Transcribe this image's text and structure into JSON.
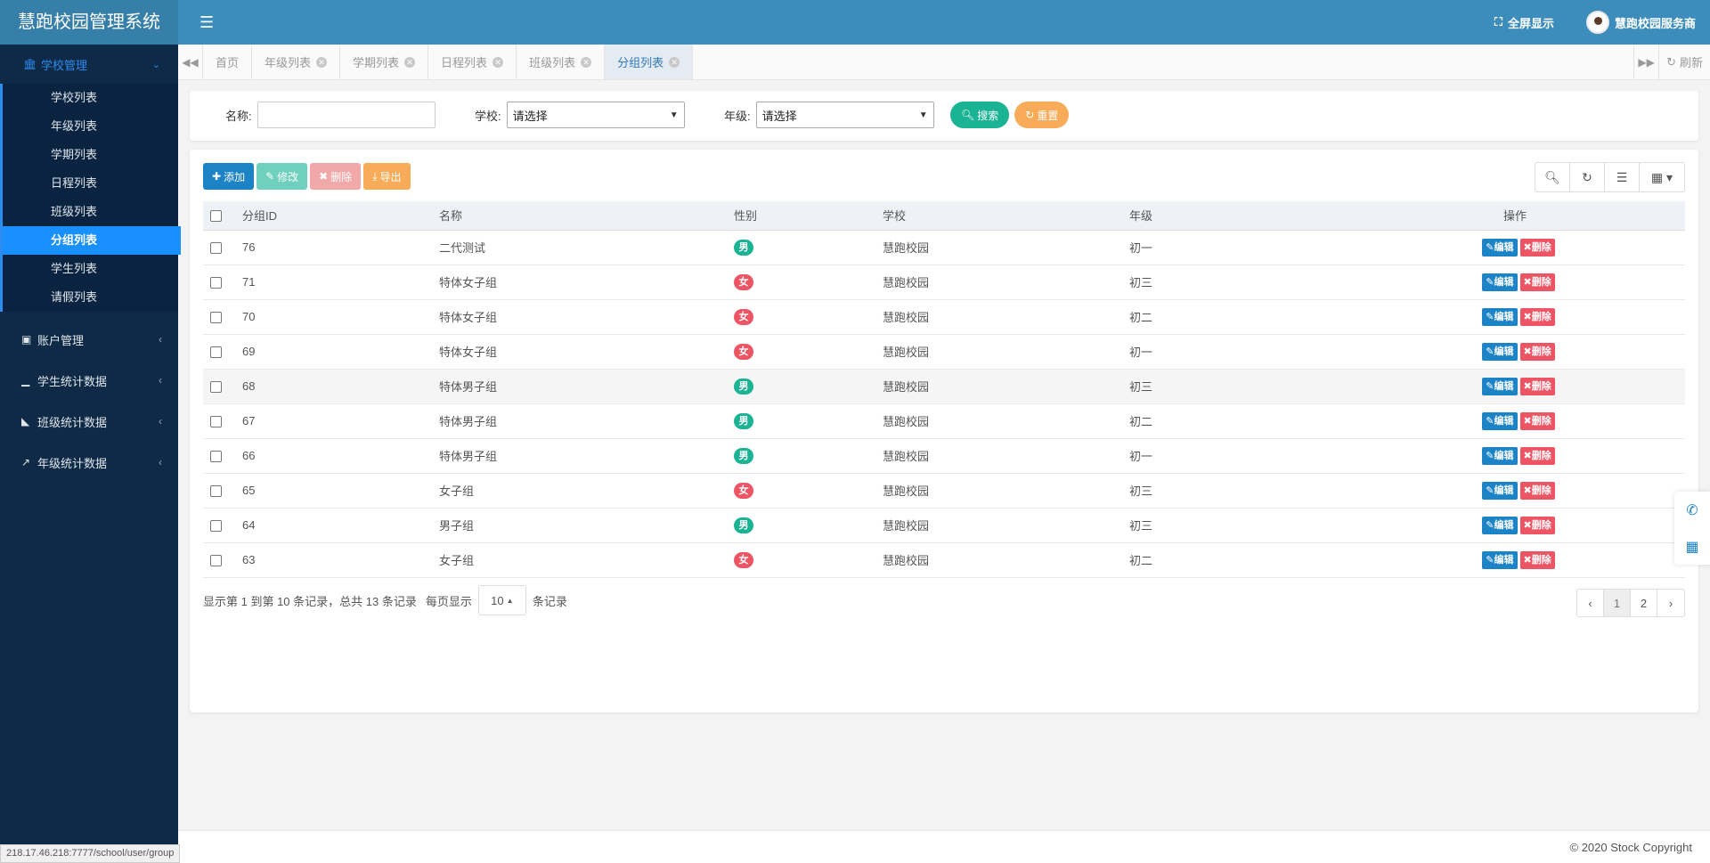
{
  "app": {
    "title": "慧跑校园管理系统",
    "fullscreen_label": "全屏显示",
    "user_name": "慧跑校园服务商",
    "footer": "© 2020 Stock Copyright",
    "status_url": "218.17.46.218:7777/school/user/group"
  },
  "sidebar": {
    "active_group": "学校管理",
    "items": [
      {
        "label": "学校列表"
      },
      {
        "label": "年级列表"
      },
      {
        "label": "学期列表"
      },
      {
        "label": "日程列表"
      },
      {
        "label": "班级列表"
      },
      {
        "label": "分组列表"
      },
      {
        "label": "学生列表"
      },
      {
        "label": "请假列表"
      }
    ],
    "groups": [
      {
        "label": "账户管理"
      },
      {
        "label": "学生统计数据"
      },
      {
        "label": "班级统计数据"
      },
      {
        "label": "年级统计数据"
      }
    ]
  },
  "tabs": [
    {
      "label": "首页"
    },
    {
      "label": "年级列表"
    },
    {
      "label": "学期列表"
    },
    {
      "label": "日程列表"
    },
    {
      "label": "班级列表"
    },
    {
      "label": "分组列表"
    }
  ],
  "refresh_label": "刷新",
  "search": {
    "name_label": "名称:",
    "school_label": "学校:",
    "school_value": "请选择",
    "grade_label": "年级:",
    "grade_value": "请选择",
    "search_btn": "搜索",
    "reset_btn": "重置"
  },
  "toolbar": {
    "add": "添加",
    "edit": "修改",
    "delete": "删除",
    "export": "导出"
  },
  "table": {
    "headers": [
      "分组ID",
      "名称",
      "性别",
      "学校",
      "年级",
      "操作"
    ],
    "edit_label": "编辑",
    "delete_label": "删除",
    "rows": [
      {
        "id": "76",
        "name": "二代测试",
        "gender": "男",
        "school": "慧跑校园",
        "grade": "初一"
      },
      {
        "id": "71",
        "name": "特体女子组",
        "gender": "女",
        "school": "慧跑校园",
        "grade": "初三"
      },
      {
        "id": "70",
        "name": "特体女子组",
        "gender": "女",
        "school": "慧跑校园",
        "grade": "初二"
      },
      {
        "id": "69",
        "name": "特体女子组",
        "gender": "女",
        "school": "慧跑校园",
        "grade": "初一"
      },
      {
        "id": "68",
        "name": "特体男子组",
        "gender": "男",
        "school": "慧跑校园",
        "grade": "初三"
      },
      {
        "id": "67",
        "name": "特体男子组",
        "gender": "男",
        "school": "慧跑校园",
        "grade": "初二"
      },
      {
        "id": "66",
        "name": "特体男子组",
        "gender": "男",
        "school": "慧跑校园",
        "grade": "初一"
      },
      {
        "id": "65",
        "name": "女子组",
        "gender": "女",
        "school": "慧跑校园",
        "grade": "初三"
      },
      {
        "id": "64",
        "name": "男子组",
        "gender": "男",
        "school": "慧跑校园",
        "grade": "初三"
      },
      {
        "id": "63",
        "name": "女子组",
        "gender": "女",
        "school": "慧跑校园",
        "grade": "初二"
      }
    ]
  },
  "pagination": {
    "info": "显示第 1 到第 10 条记录，总共 13 条记录",
    "per_page_label": "每页显示",
    "page_size": "10",
    "records_label": "条记录",
    "prev": "‹",
    "pages": [
      "1",
      "2"
    ],
    "next": "›"
  },
  "icons": [
    "bank-icon",
    "chevron-down-icon",
    "hamburger-icon",
    "expand-icon",
    "binoculars-icon",
    "bar-chart-icon",
    "area-chart-icon",
    "line-chart-icon",
    "search-icon",
    "refresh-icon",
    "columns-icon",
    "grid-icon",
    "phone-icon",
    "qrcode-icon"
  ]
}
